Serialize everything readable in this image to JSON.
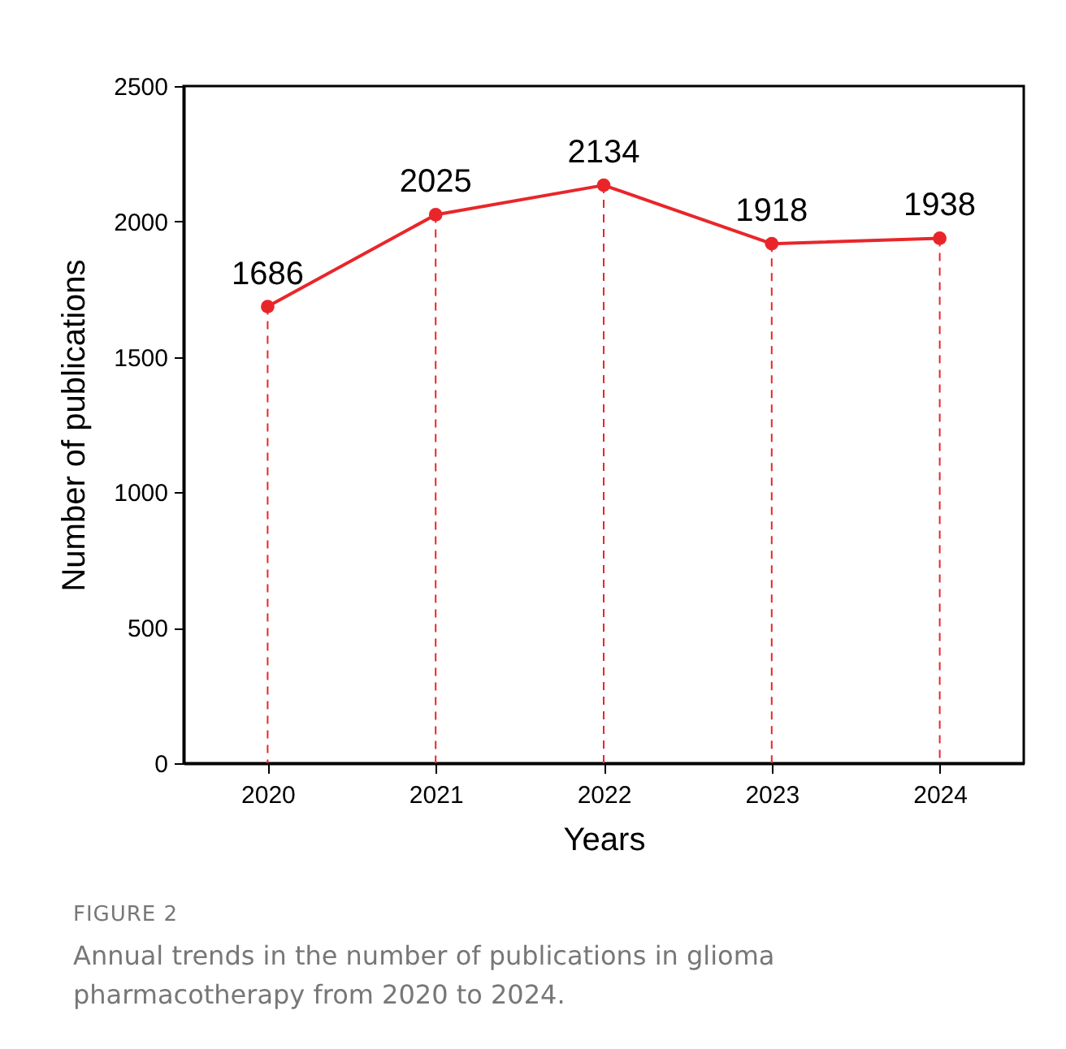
{
  "chart_data": {
    "type": "line",
    "xlabel": "Years",
    "ylabel": "Number of publications",
    "x": [
      2020,
      2021,
      2022,
      2023,
      2024
    ],
    "series": [
      {
        "color": "#e8262a",
        "values": [
          1686,
          2025,
          2134,
          1918,
          1938
        ]
      }
    ],
    "xlim": [
      2019.5,
      2024.5
    ],
    "xticks": [
      2020,
      2021,
      2022,
      2023,
      2024
    ],
    "ylim": [
      0,
      2500
    ],
    "yticks": [
      0,
      500,
      1000,
      1500,
      2000,
      2500
    ],
    "marker": "circle",
    "data_labels": true,
    "grid": "x",
    "legend": false,
    "annotations": [
      "FIGURE 2",
      "Annual trends in the number of publications in glioma pharmacotherapy from 2020 to 2024."
    ]
  }
}
